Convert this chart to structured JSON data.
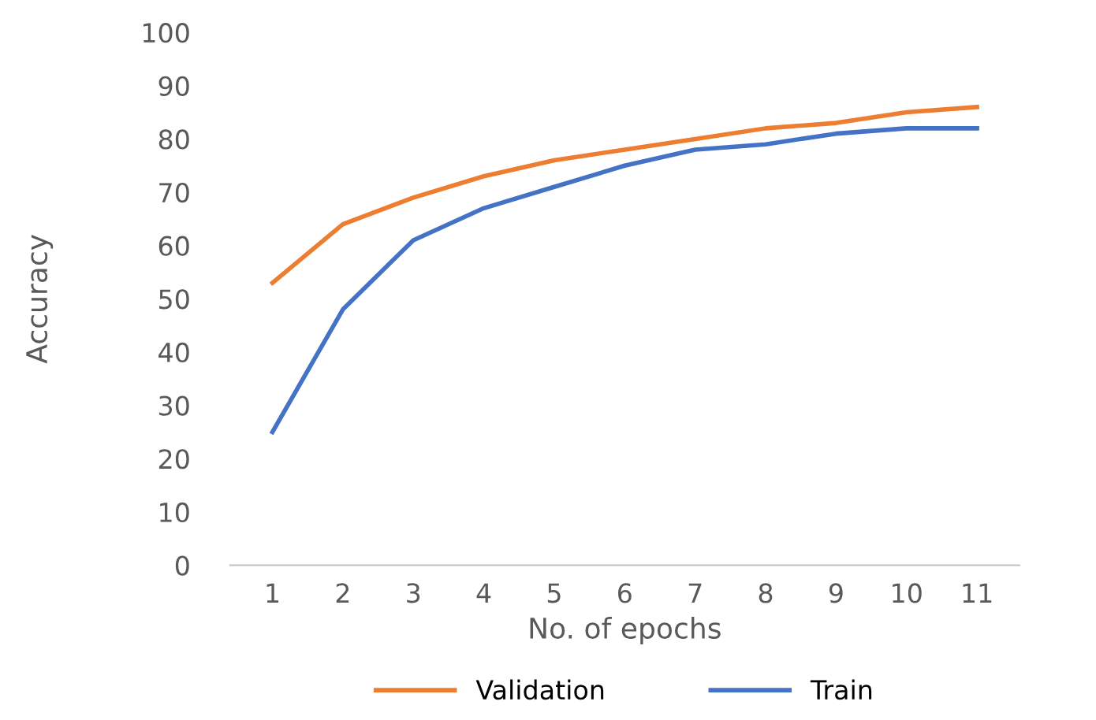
{
  "chart_data": {
    "type": "line",
    "xlabel": "No. of epochs",
    "ylabel": "Accuracy",
    "categories": [
      "1",
      "2",
      "3",
      "4",
      "5",
      "6",
      "7",
      "8",
      "9",
      "10",
      "11"
    ],
    "series": [
      {
        "name": "Validation",
        "color": "#ed7d31",
        "values": [
          53,
          64,
          69,
          73,
          76,
          78,
          80,
          82,
          83,
          85,
          86
        ]
      },
      {
        "name": "Train",
        "color": "#4472c4",
        "values": [
          25,
          48,
          61,
          67,
          71,
          75,
          78,
          79,
          81,
          82,
          82
        ]
      }
    ],
    "ylim": [
      0,
      100
    ],
    "yticks": [
      0,
      10,
      20,
      30,
      40,
      50,
      60,
      70,
      80,
      90,
      100
    ],
    "grid": false,
    "legend": "bottom",
    "line_style": "solid",
    "marker": "none"
  }
}
